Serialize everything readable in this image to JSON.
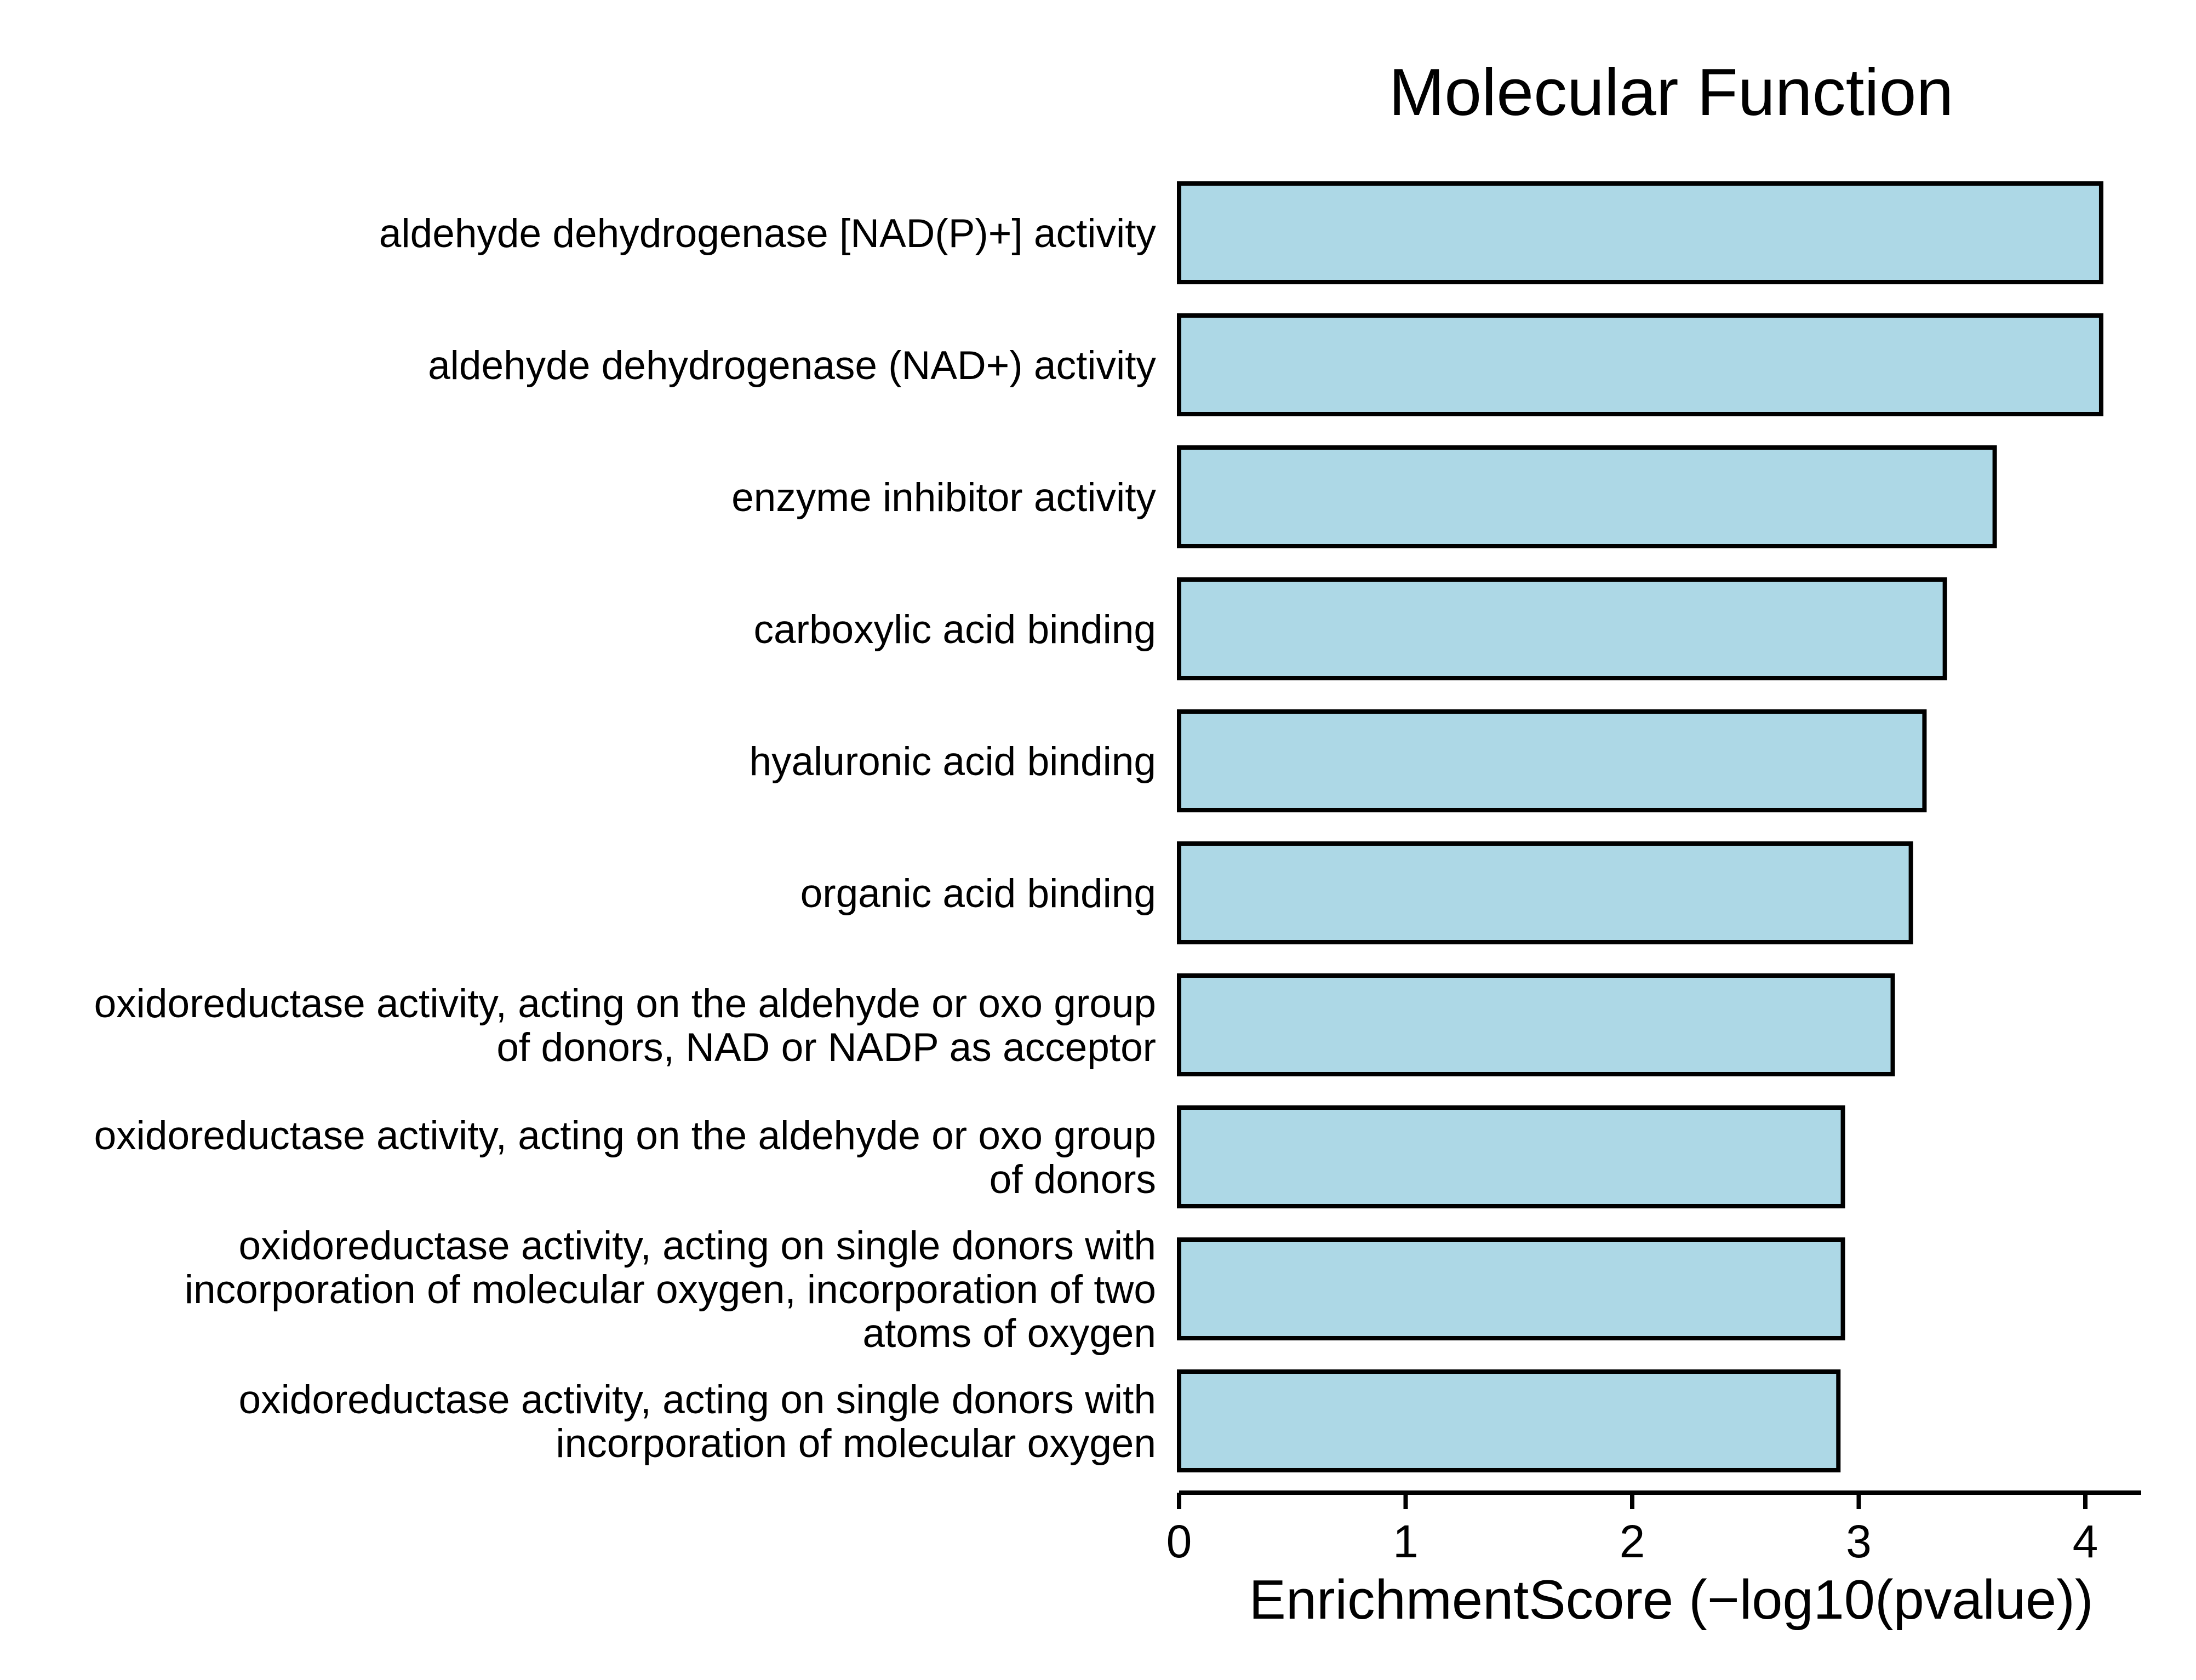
{
  "chart_data": {
    "type": "bar",
    "orientation": "horizontal",
    "title": "Molecular Function",
    "xlabel": "EnrichmentScore (−log10(pvalue))",
    "ylabel": "",
    "xlim": [
      0,
      4.28
    ],
    "xticks": [
      0,
      1,
      2,
      3,
      4
    ],
    "grid": false,
    "legend": "none",
    "bar_color": "#ADD8E6",
    "bar_edge_color": "#000000",
    "categories": [
      "aldehyde dehydrogenase [NAD(P)+] activity",
      "aldehyde dehydrogenase (NAD+) activity",
      "enzyme inhibitor activity",
      "carboxylic acid binding",
      "hyaluronic acid binding",
      "organic acid binding",
      "oxidoreductase activity, acting on the aldehyde or oxo group of donors, NAD or NADP as acceptor",
      "oxidoreductase activity, acting on the aldehyde or oxo group of donors",
      "oxidoreductase activity, acting on single donors with incorporation of molecular oxygen, incorporation of two atoms of oxygen",
      "oxidoreductase activity, acting on single donors with incorporation of molecular oxygen"
    ],
    "category_lines": [
      [
        "aldehyde dehydrogenase [NAD(P)+] activity"
      ],
      [
        "aldehyde dehydrogenase (NAD+) activity"
      ],
      [
        "enzyme inhibitor activity"
      ],
      [
        "carboxylic acid binding"
      ],
      [
        "hyaluronic acid binding"
      ],
      [
        "organic acid binding"
      ],
      [
        "oxidoreductase activity, acting on the aldehyde or oxo group",
        "of donors, NAD or NADP as acceptor"
      ],
      [
        "oxidoreductase activity, acting on the aldehyde or oxo group",
        "of donors"
      ],
      [
        "oxidoreductase activity, acting on single donors with",
        "incorporation of molecular oxygen, incorporation of two",
        "atoms of oxygen"
      ],
      [
        "oxidoreductase activity, acting on single donors with",
        "incorporation of molecular oxygen"
      ]
    ],
    "values": [
      4.07,
      4.07,
      3.6,
      3.38,
      3.29,
      3.23,
      3.15,
      2.93,
      2.93,
      2.91
    ]
  }
}
